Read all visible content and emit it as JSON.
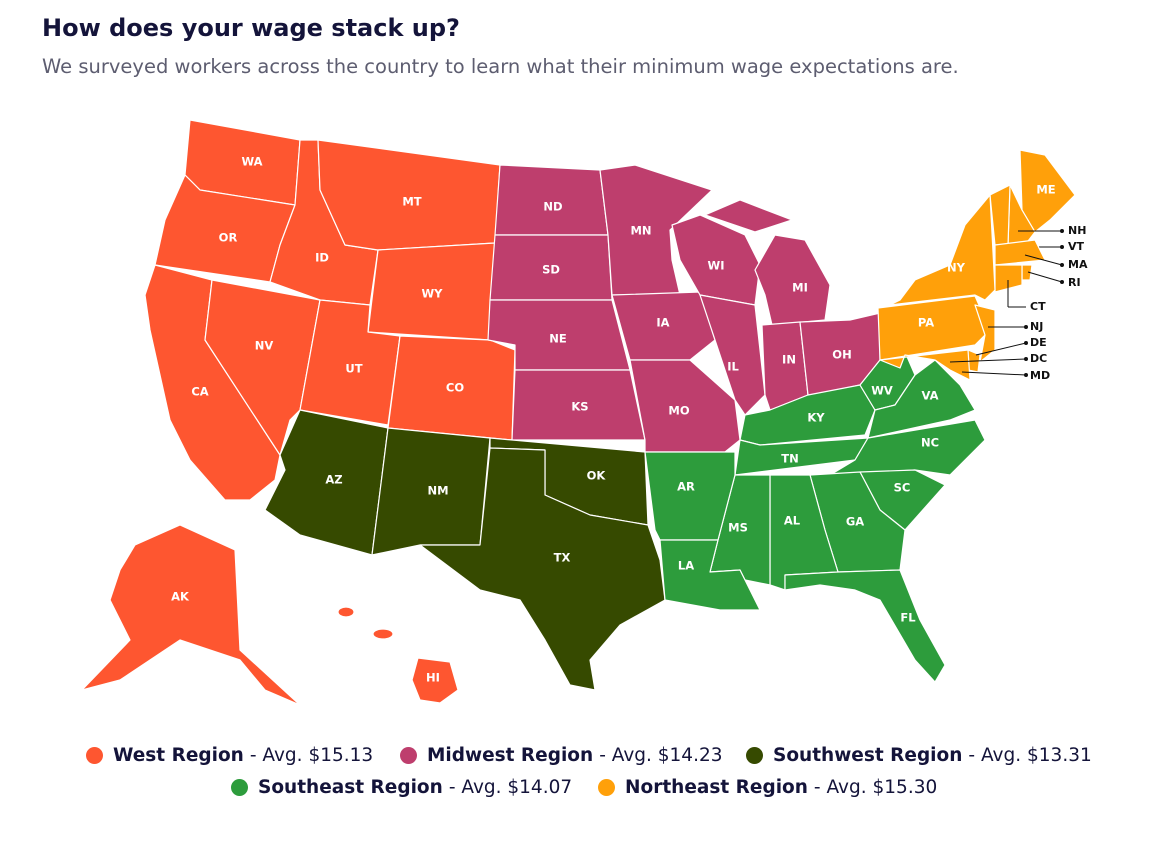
{
  "header": {
    "title": "How does your wage stack up?",
    "subtitle": "We surveyed workers across the country to learn what their minimum wage expectations are."
  },
  "regions": [
    {
      "name": "West Region",
      "avg_label": "- Avg. $15.13",
      "color": "#fe5630",
      "states": [
        "WA",
        "OR",
        "CA",
        "NV",
        "ID",
        "MT",
        "WY",
        "UT",
        "CO",
        "AK",
        "HI"
      ]
    },
    {
      "name": "Midwest Region",
      "avg_label": "- Avg. $14.23",
      "color": "#be3e6d",
      "states": [
        "ND",
        "SD",
        "NE",
        "KS",
        "MN",
        "IA",
        "MO",
        "WI",
        "IL",
        "MI",
        "IN",
        "OH"
      ]
    },
    {
      "name": "Southwest Region",
      "avg_label": "- Avg. $13.31",
      "color": "#364a00",
      "states": [
        "AZ",
        "NM",
        "OK",
        "TX"
      ]
    },
    {
      "name": "Southeast Region",
      "avg_label": "- Avg. $14.07",
      "color": "#2d9c3c",
      "states": [
        "KY",
        "WV",
        "VA",
        "TN",
        "NC",
        "SC",
        "GA",
        "AL",
        "MS",
        "AR",
        "LA",
        "FL"
      ]
    },
    {
      "name": "Northeast Region",
      "avg_label": "- Avg. $15.30",
      "color": "#ffa00a",
      "states": [
        "ME",
        "NH",
        "VT",
        "MA",
        "RI",
        "CT",
        "NY",
        "PA",
        "NJ",
        "DE",
        "MD",
        "DC"
      ]
    }
  ]
}
